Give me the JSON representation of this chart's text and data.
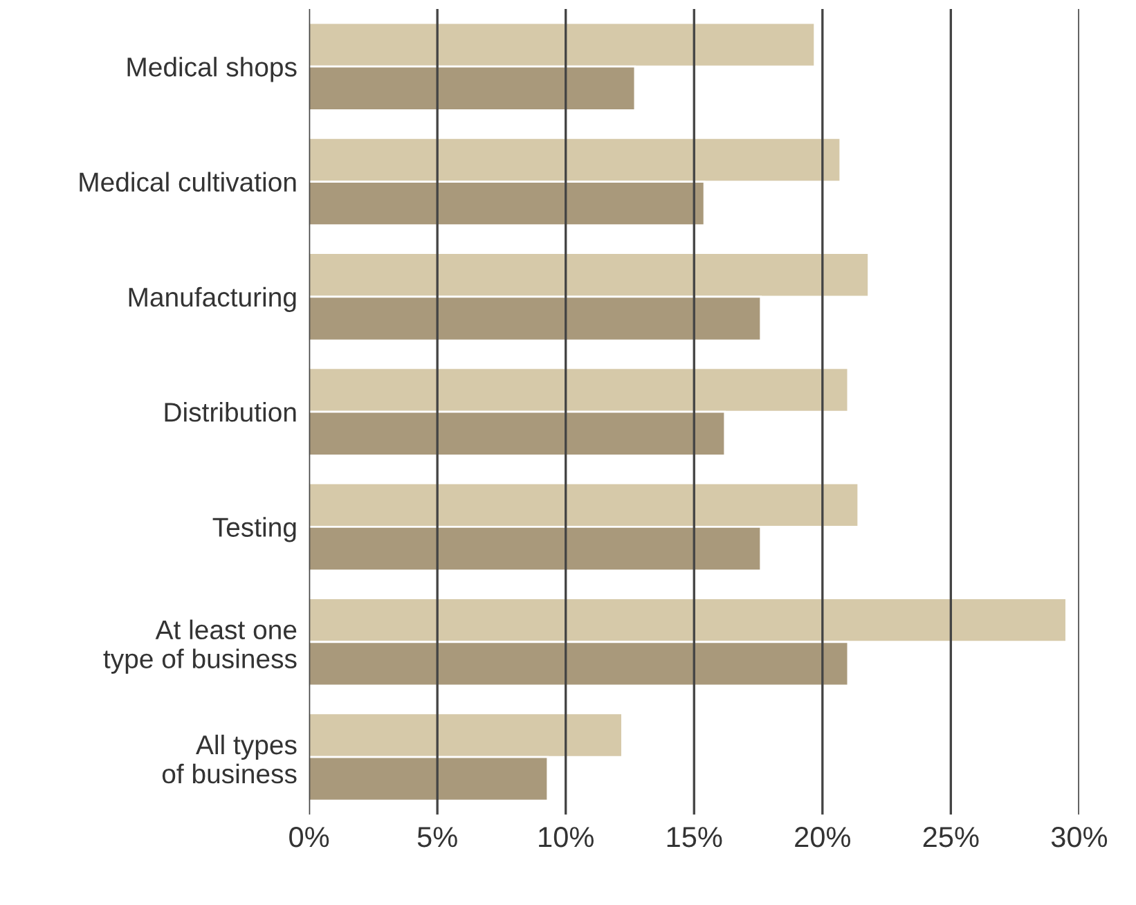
{
  "chart_data": {
    "type": "bar",
    "orientation": "horizontal",
    "categories": [
      "Medical shops",
      "Medical cultivation",
      "Manufacturing",
      "Distribution",
      "Testing",
      "At least one\ntype of business",
      "All types\nof business"
    ],
    "series": [
      {
        "color": "#d6c9a9",
        "values": [
          19.7,
          20.7,
          21.8,
          21.0,
          21.4,
          29.5,
          12.2
        ]
      },
      {
        "color": "#a9997b",
        "values": [
          12.7,
          15.4,
          17.6,
          16.2,
          17.6,
          21.0,
          9.3
        ]
      }
    ],
    "xlim": [
      0,
      30
    ],
    "xticks": [
      {
        "value": 0,
        "label": "0%"
      },
      {
        "value": 5,
        "label": "5%"
      },
      {
        "value": 10,
        "label": "10%"
      },
      {
        "value": 15,
        "label": "15%"
      },
      {
        "value": 20,
        "label": "20%"
      },
      {
        "value": 25,
        "label": "25%"
      },
      {
        "value": 30,
        "label": "30%"
      }
    ],
    "grid": "x"
  }
}
